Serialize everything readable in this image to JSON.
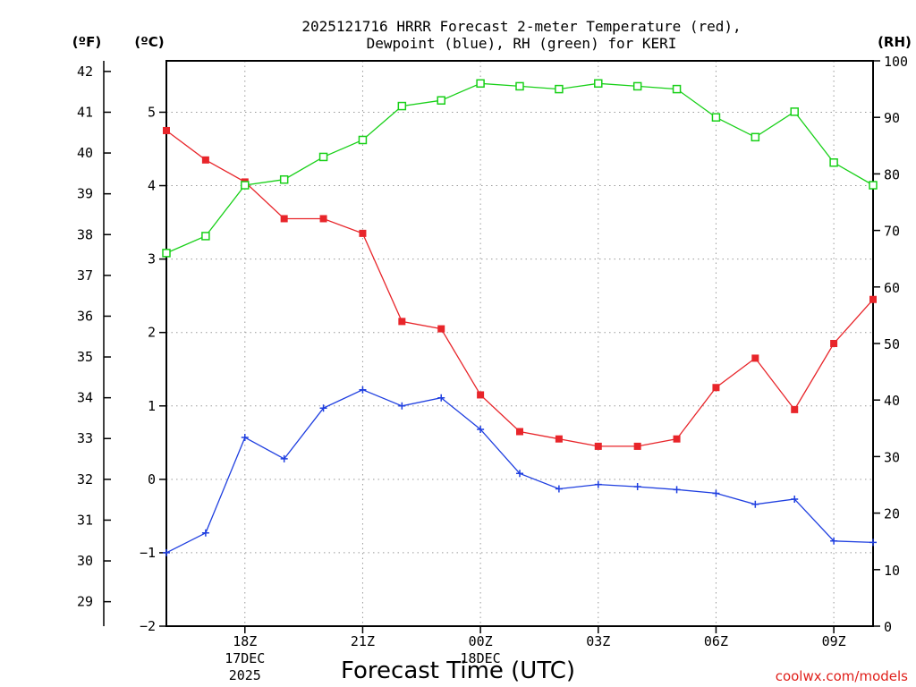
{
  "chart_data": {
    "type": "line",
    "title_line1": "2025121716 HRRR Forecast 2-meter Temperature (red),",
    "title_line2": "Dewpoint (blue), RH (green) for KERI",
    "xlabel": "Forecast Time (UTC)",
    "credit": "coolwx.com/models",
    "units": {
      "fahrenheit": "(ºF)",
      "celsius": "(ºC)",
      "rh": "(RH)"
    },
    "x_hours": [
      16,
      17,
      18,
      19,
      20,
      21,
      22,
      23,
      24,
      25,
      26,
      27,
      28,
      29,
      30,
      31,
      32,
      33,
      34
    ],
    "xlim": [
      16,
      34
    ],
    "x_ticks": [
      {
        "hour": 18,
        "label": "18Z",
        "sub1": "17DEC",
        "sub2": "2025"
      },
      {
        "hour": 21,
        "label": "21Z",
        "sub1": "",
        "sub2": ""
      },
      {
        "hour": 24,
        "label": "00Z",
        "sub1": "18DEC",
        "sub2": ""
      },
      {
        "hour": 27,
        "label": "03Z",
        "sub1": "",
        "sub2": ""
      },
      {
        "hour": 30,
        "label": "06Z",
        "sub1": "",
        "sub2": ""
      },
      {
        "hour": 33,
        "label": "09Z",
        "sub1": "",
        "sub2": ""
      }
    ],
    "celsius_axis": {
      "min": -2,
      "max": 5.7,
      "ticks": [
        "-2",
        "-1",
        "0",
        "1",
        "2",
        "3",
        "4",
        "5"
      ]
    },
    "fahrenheit_ticks": [
      "29",
      "30",
      "31",
      "32",
      "33",
      "34",
      "35",
      "36",
      "37",
      "38",
      "39",
      "40",
      "41",
      "42"
    ],
    "rh_axis": {
      "min": 0,
      "max": 100,
      "ticks": [
        "0",
        "10",
        "20",
        "30",
        "40",
        "50",
        "60",
        "70",
        "80",
        "90",
        "100"
      ]
    },
    "series": [
      {
        "name": "Temperature",
        "axis": "celsius",
        "color": "#e8252a",
        "marker": "filled-square",
        "values": [
          4.75,
          4.35,
          4.05,
          3.55,
          3.55,
          3.35,
          2.15,
          2.05,
          1.15,
          0.65,
          0.55,
          0.45,
          0.45,
          0.55,
          1.25,
          1.65,
          0.95,
          1.85,
          2.45
        ]
      },
      {
        "name": "Dewpoint",
        "axis": "celsius",
        "color": "#1f3fe0",
        "marker": "plus",
        "values": [
          -1.0,
          -0.73,
          0.57,
          0.28,
          0.97,
          1.22,
          1.0,
          1.11,
          0.68,
          0.08,
          -0.13,
          -0.07,
          -0.1,
          -0.14,
          -0.19,
          -0.34,
          -0.27,
          -0.84,
          -0.86
        ]
      },
      {
        "name": "RH",
        "axis": "rh",
        "color": "#18d018",
        "marker": "open-square",
        "values": [
          66,
          69,
          78,
          79,
          83,
          86,
          92,
          93,
          96,
          95.5,
          95,
          96,
          95.5,
          95,
          90,
          86.5,
          91,
          82,
          78
        ]
      }
    ]
  }
}
